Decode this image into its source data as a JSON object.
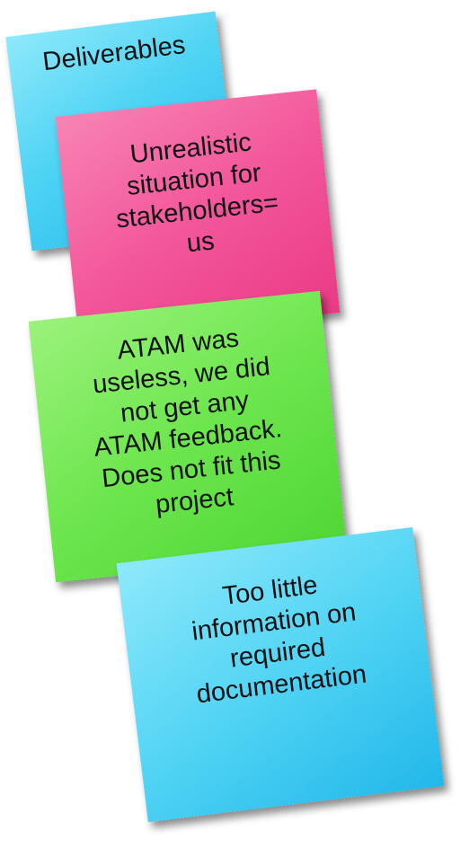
{
  "notes": {
    "deliverables": "Deliverables",
    "stakeholders": "Unrealistic\nsituation for\nstakeholders=\nus",
    "atam": "ATAM was\nuseless, we did\nnot get any\nATAM feedback.\nDoes not fit this\nproject",
    "documentation": "Too little\ninformation on\nrequired\ndocumentation"
  },
  "colors": {
    "blue_note": "#4ed3f4",
    "pink_note": "#f3579b",
    "green_note": "#6de64e"
  }
}
